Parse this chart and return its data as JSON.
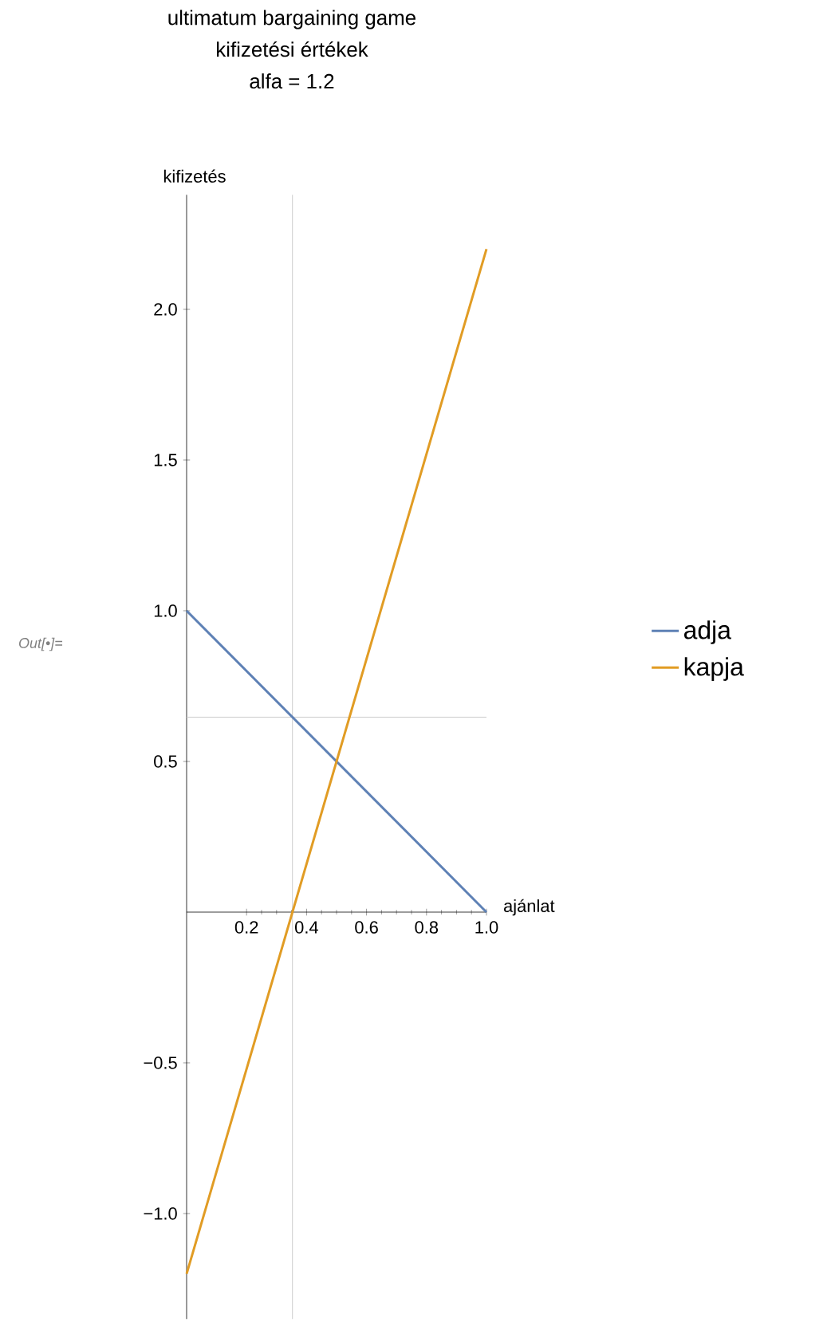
{
  "chart_data": {
    "type": "line",
    "title": "ultimatum bargaining game\nkifizetési értékek\nalfa = 1.2",
    "xlabel": "ajánlat",
    "ylabel": "kifizetés",
    "x": [
      0,
      1
    ],
    "series": [
      {
        "name": "adja",
        "color": "#5e81b5",
        "values": [
          1,
          0
        ]
      },
      {
        "name": "kapja",
        "color": "#e19c24",
        "values": [
          -1.2,
          2.2
        ]
      }
    ],
    "xlim": [
      0,
      1.0
    ],
    "ylim": [
      -1.35,
      2.38
    ],
    "xticks": [
      {
        "value": 0.2,
        "label": "0.2"
      },
      {
        "value": 0.4,
        "label": "0.4"
      },
      {
        "value": 0.6,
        "label": "0.6"
      },
      {
        "value": 0.8,
        "label": "0.8"
      },
      {
        "value": 1.0,
        "label": "1.0"
      }
    ],
    "yticks": [
      {
        "value": -1.0,
        "label": "−1.0"
      },
      {
        "value": -0.5,
        "label": "−0.5"
      },
      {
        "value": 0.5,
        "label": "0.5"
      },
      {
        "value": 1.0,
        "label": "1.0"
      },
      {
        "value": 1.5,
        "label": "1.5"
      },
      {
        "value": 2.0,
        "label": "2.0"
      }
    ],
    "ref_lines": [
      {
        "axis": "x",
        "value": 0.353,
        "color": "#cccccc"
      },
      {
        "axis": "y",
        "value": 0.647,
        "color": "#cccccc"
      }
    ],
    "annotations": [
      "Out[•]="
    ],
    "legend": "right",
    "grid": false,
    "marker": "none",
    "line_style": "solid"
  }
}
